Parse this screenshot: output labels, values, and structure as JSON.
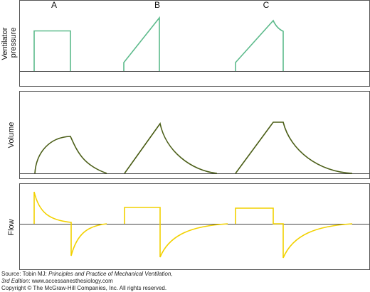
{
  "column_labels": [
    "A",
    "B",
    "C"
  ],
  "panels": [
    {
      "label_lines": [
        "Ventilator",
        "pressure"
      ],
      "color": "#5cba8b"
    },
    {
      "label_lines": [
        "Volume"
      ],
      "color": "#4b5e17"
    },
    {
      "label_lines": [
        "Flow"
      ],
      "color": "#f2d100"
    }
  ],
  "axis_color": "#444444",
  "frame_color": "#555555",
  "source": {
    "prefix": "Source: Tobin MJ: ",
    "title": "Principles and Practice of Mechanical Ventilation,",
    "edition": "3rd Edition",
    "suffix": ": www.accessanesthesiology.com"
  },
  "copyright": "Copyright © The McGraw-Hill Companies, Inc. All rights reserved."
}
